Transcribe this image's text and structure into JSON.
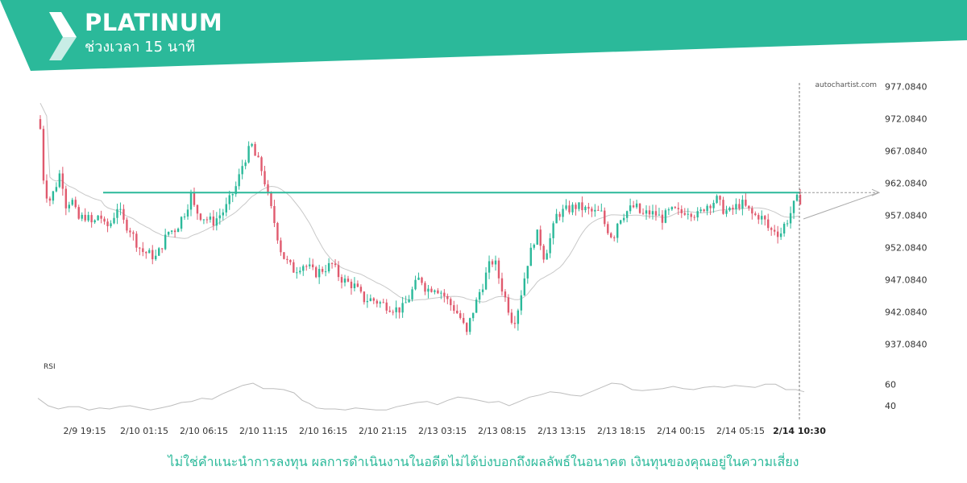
{
  "header": {
    "title": "PLATINUM",
    "subtitle": "ช่วงเวลา 15 นาที",
    "bg_color": "#2bb99a"
  },
  "footer": {
    "disclaimer": "ไม่ใช่คำแนะนำการลงทุน ผลการดำเนินงานในอดีตไม่ได้บ่งบอกถึงผลลัพธ์ในอนาคต เงินทุนของคุณอยู่ในความเสี่ยง"
  },
  "chart_data": {
    "type": "candlestick",
    "watermark": "autochartist.com",
    "y_ticks": [
      "977.0840",
      "972.0840",
      "967.0840",
      "962.0840",
      "957.0840",
      "952.0840",
      "947.0840",
      "942.0840",
      "937.0840"
    ],
    "ylim": [
      935.5,
      977.5
    ],
    "x_ticks": [
      "2/9 19:15",
      "2/10 01:15",
      "2/10 06:15",
      "2/10 11:15",
      "2/10 16:15",
      "2/10 21:15",
      "2/13 03:15",
      "2/13 08:15",
      "2/13 13:15",
      "2/13 18:15",
      "2/14 00:15",
      "2/14 05:15"
    ],
    "current_time_label": "2/14 10:30",
    "resistance_level": 960.6,
    "colors": {
      "up": "#2bb99a",
      "down": "#e05a6e",
      "level": "#2bb99a",
      "ma": "#c8c8c8",
      "rsi": "#bdbdbd"
    },
    "price_path": [
      [
        0,
        970.5
      ],
      [
        3,
        963
      ],
      [
        8,
        959
      ],
      [
        14,
        961
      ],
      [
        20,
        964
      ],
      [
        26,
        958
      ],
      [
        30,
        960
      ],
      [
        37,
        956.4
      ],
      [
        45,
        957
      ],
      [
        52,
        955.5
      ],
      [
        58,
        957.5
      ],
      [
        64,
        955
      ],
      [
        70,
        956
      ],
      [
        76,
        958.5
      ],
      [
        82,
        956
      ],
      [
        88,
        955
      ],
      [
        94,
        953
      ],
      [
        100,
        951.5
      ],
      [
        108,
        951
      ],
      [
        114,
        950.5
      ],
      [
        120,
        952.5
      ],
      [
        126,
        954.5
      ],
      [
        134,
        955
      ],
      [
        140,
        957
      ],
      [
        144,
        958
      ],
      [
        148,
        960.5
      ],
      [
        152,
        958
      ],
      [
        158,
        957
      ],
      [
        164,
        956.5
      ],
      [
        170,
        956
      ],
      [
        176,
        957
      ],
      [
        182,
        958
      ],
      [
        188,
        960
      ],
      [
        194,
        962
      ],
      [
        198,
        964.5
      ],
      [
        202,
        966
      ],
      [
        208,
        968
      ],
      [
        212,
        966
      ],
      [
        216,
        965
      ],
      [
        220,
        963
      ],
      [
        224,
        960
      ],
      [
        228,
        957.5
      ],
      [
        232,
        955
      ],
      [
        236,
        952
      ],
      [
        240,
        950.5
      ],
      [
        244,
        949.5
      ],
      [
        250,
        948.5
      ],
      [
        258,
        949.5
      ],
      [
        264,
        949
      ],
      [
        270,
        948
      ],
      [
        276,
        948.5
      ],
      [
        282,
        949
      ],
      [
        288,
        949.5
      ],
      [
        292,
        948
      ],
      [
        298,
        947
      ],
      [
        304,
        946.5
      ],
      [
        310,
        946
      ],
      [
        318,
        944
      ],
      [
        326,
        944
      ],
      [
        334,
        943.5
      ],
      [
        342,
        943
      ],
      [
        350,
        942.5
      ],
      [
        356,
        942.5
      ],
      [
        362,
        944
      ],
      [
        368,
        946
      ],
      [
        374,
        947.5
      ],
      [
        380,
        945.5
      ],
      [
        388,
        946
      ],
      [
        396,
        945
      ],
      [
        402,
        943.5
      ],
      [
        408,
        942.5
      ],
      [
        414,
        941
      ],
      [
        420,
        938.5
      ],
      [
        424,
        941.5
      ],
      [
        428,
        943
      ],
      [
        432,
        945
      ],
      [
        436,
        946.5
      ],
      [
        440,
        948.5
      ],
      [
        444,
        950
      ],
      [
        448,
        949.5
      ],
      [
        452,
        947
      ],
      [
        456,
        945
      ],
      [
        460,
        943
      ],
      [
        464,
        941
      ],
      [
        468,
        941
      ],
      [
        472,
        944
      ],
      [
        476,
        947
      ],
      [
        480,
        950
      ],
      [
        484,
        952
      ],
      [
        488,
        954.5
      ],
      [
        492,
        953
      ],
      [
        496,
        950.5
      ],
      [
        500,
        952.5
      ],
      [
        504,
        954.5
      ],
      [
        508,
        957
      ],
      [
        512,
        957.5
      ],
      [
        520,
        958
      ],
      [
        528,
        958.5
      ],
      [
        536,
        958
      ],
      [
        544,
        957.5
      ],
      [
        552,
        957.5
      ],
      [
        556,
        955.5
      ],
      [
        560,
        954.5
      ],
      [
        564,
        953.5
      ],
      [
        568,
        956
      ],
      [
        572,
        957
      ],
      [
        580,
        958
      ],
      [
        586,
        958.5
      ],
      [
        592,
        957
      ],
      [
        598,
        957.5
      ],
      [
        606,
        957.2
      ],
      [
        612,
        956.5
      ],
      [
        618,
        957.5
      ],
      [
        624,
        957.8
      ],
      [
        630,
        957.3
      ],
      [
        636,
        958
      ],
      [
        642,
        957.5
      ],
      [
        648,
        957
      ],
      [
        654,
        958.5
      ],
      [
        660,
        959
      ],
      [
        666,
        959.5
      ],
      [
        672,
        958
      ],
      [
        678,
        957.5
      ],
      [
        684,
        958.3
      ],
      [
        690,
        959
      ],
      [
        696,
        958
      ],
      [
        702,
        957
      ],
      [
        708,
        957
      ],
      [
        714,
        956
      ],
      [
        718,
        954.5
      ],
      [
        722,
        955
      ],
      [
        728,
        954
      ],
      [
        732,
        955.5
      ],
      [
        736,
        956.5
      ],
      [
        740,
        958
      ],
      [
        744,
        959.5
      ],
      [
        748,
        959.5
      ]
    ],
    "rsi": {
      "label": "RSI",
      "ticks": [
        "60",
        "40"
      ],
      "ylim": [
        28,
        70
      ],
      "levels": [
        60,
        40
      ],
      "path": [
        [
          0,
          47
        ],
        [
          10,
          40
        ],
        [
          20,
          37
        ],
        [
          30,
          39
        ],
        [
          40,
          39
        ],
        [
          50,
          36
        ],
        [
          60,
          38
        ],
        [
          70,
          37
        ],
        [
          80,
          39
        ],
        [
          90,
          40
        ],
        [
          100,
          38
        ],
        [
          110,
          36
        ],
        [
          120,
          38
        ],
        [
          130,
          40
        ],
        [
          140,
          43
        ],
        [
          150,
          44
        ],
        [
          160,
          47
        ],
        [
          170,
          46
        ],
        [
          180,
          51
        ],
        [
          190,
          55
        ],
        [
          200,
          59
        ],
        [
          210,
          61
        ],
        [
          220,
          56
        ],
        [
          230,
          56
        ],
        [
          240,
          55
        ],
        [
          250,
          52
        ],
        [
          258,
          45
        ],
        [
          265,
          42
        ],
        [
          272,
          38
        ],
        [
          280,
          37
        ],
        [
          290,
          37
        ],
        [
          300,
          36
        ],
        [
          310,
          38
        ],
        [
          320,
          37
        ],
        [
          330,
          36
        ],
        [
          340,
          36
        ],
        [
          350,
          39
        ],
        [
          360,
          41
        ],
        [
          370,
          43
        ],
        [
          380,
          44
        ],
        [
          390,
          41
        ],
        [
          400,
          45
        ],
        [
          410,
          48
        ],
        [
          420,
          47
        ],
        [
          430,
          45
        ],
        [
          440,
          43
        ],
        [
          450,
          44
        ],
        [
          460,
          40
        ],
        [
          470,
          44
        ],
        [
          480,
          48
        ],
        [
          490,
          50
        ],
        [
          500,
          53
        ],
        [
          510,
          52
        ],
        [
          520,
          50
        ],
        [
          530,
          49
        ],
        [
          540,
          53
        ],
        [
          550,
          57
        ],
        [
          560,
          61
        ],
        [
          570,
          60
        ],
        [
          580,
          55
        ],
        [
          590,
          54
        ],
        [
          600,
          55
        ],
        [
          610,
          56
        ],
        [
          620,
          58
        ],
        [
          630,
          56
        ],
        [
          640,
          55
        ],
        [
          650,
          57
        ],
        [
          660,
          58
        ],
        [
          670,
          57
        ],
        [
          680,
          59
        ],
        [
          690,
          58
        ],
        [
          700,
          57
        ],
        [
          710,
          60
        ],
        [
          720,
          60
        ],
        [
          730,
          55
        ],
        [
          740,
          55
        ],
        [
          748,
          53
        ]
      ]
    }
  }
}
